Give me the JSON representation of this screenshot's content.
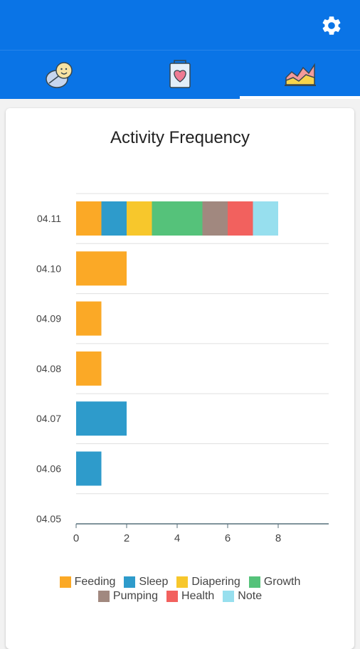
{
  "header": {
    "settings_icon": "gear-icon"
  },
  "tabs": [
    {
      "icon": "baby-icon",
      "active": false
    },
    {
      "icon": "heart-card-icon",
      "active": false
    },
    {
      "icon": "area-chart-icon",
      "active": true
    }
  ],
  "chart_data": {
    "type": "bar",
    "orientation": "horizontal",
    "stacked": true,
    "title": "Activity Frequency",
    "xlabel": "",
    "ylabel": "",
    "categories": [
      "04.11",
      "04.10",
      "04.09",
      "04.08",
      "04.07",
      "04.06",
      "04.05"
    ],
    "xlim": [
      0,
      10
    ],
    "xticks": [
      0,
      2,
      4,
      6,
      8
    ],
    "grid": true,
    "legend_position": "bottom",
    "series": [
      {
        "name": "Feeding",
        "color": "#FBA926",
        "values": [
          1,
          2,
          1,
          1,
          0,
          0,
          0
        ]
      },
      {
        "name": "Sleep",
        "color": "#2E9BCB",
        "values": [
          1,
          0,
          0,
          0,
          2,
          1,
          0
        ]
      },
      {
        "name": "Diapering",
        "color": "#F7C72C",
        "values": [
          1,
          0,
          0,
          0,
          0,
          0,
          0
        ]
      },
      {
        "name": "Growth",
        "color": "#55C27A",
        "values": [
          2,
          0,
          0,
          0,
          0,
          0,
          0
        ]
      },
      {
        "name": "Pumping",
        "color": "#A1887F",
        "values": [
          1,
          0,
          0,
          0,
          0,
          0,
          0
        ]
      },
      {
        "name": "Health",
        "color": "#F2615E",
        "values": [
          1,
          0,
          0,
          0,
          0,
          0,
          0
        ]
      },
      {
        "name": "Note",
        "color": "#97DFEE",
        "values": [
          1,
          0,
          0,
          0,
          0,
          0,
          0
        ]
      }
    ]
  }
}
